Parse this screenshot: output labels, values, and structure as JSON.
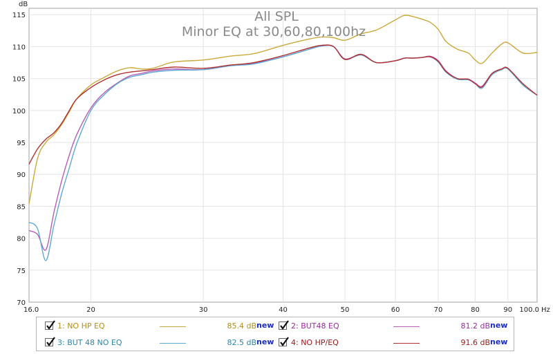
{
  "chart_data": {
    "type": "line",
    "title": "All SPL",
    "subtitle": "Minor EQ at 30,60,80,100hz",
    "xlabel": "Hz",
    "ylabel": "dB",
    "xscale": "log",
    "xlim": [
      16,
      100
    ],
    "ylim": [
      70,
      116
    ],
    "grid": true,
    "x_tick_labels": [
      "16.0",
      "20",
      "30",
      "40",
      "50",
      "60",
      "70",
      "80",
      "90",
      "100.0"
    ],
    "y_tick_labels": [
      "70",
      "75",
      "80",
      "85",
      "90",
      "95",
      "100",
      "105",
      "110",
      "115"
    ],
    "series": [
      {
        "name": "1: NO HP EQ",
        "color": "#c9a93a",
        "x": [
          16,
          16.5,
          17,
          17.5,
          18,
          18.5,
          19,
          20,
          21,
          22,
          23,
          24,
          25,
          27,
          30,
          33,
          36,
          40,
          44,
          46,
          48,
          50,
          53,
          56,
          60,
          62,
          64,
          66,
          68,
          70,
          72,
          75,
          78,
          80,
          82,
          85,
          88,
          90,
          95,
          100
        ],
        "y": [
          85.4,
          92.5,
          95.0,
          96.2,
          97.8,
          99.8,
          101.8,
          104.0,
          105.2,
          106.2,
          106.7,
          106.5,
          106.6,
          107.6,
          107.9,
          108.5,
          108.9,
          110.2,
          111.2,
          111.5,
          111.4,
          111.0,
          112.0,
          112.6,
          114.2,
          114.9,
          114.7,
          114.3,
          113.8,
          112.7,
          110.8,
          109.6,
          109.0,
          107.9,
          107.4,
          109.0,
          110.4,
          110.6,
          109.0,
          109.1
        ]
      },
      {
        "name": "2: BUT48 EQ",
        "color": "#b65db6",
        "x": [
          16,
          16.5,
          17,
          17.5,
          18,
          18.5,
          19,
          20,
          21,
          22,
          23,
          24,
          25,
          27,
          30,
          33,
          36,
          40,
          44,
          46,
          48,
          50,
          53,
          56,
          60,
          62,
          64,
          66,
          68,
          70,
          72,
          75,
          78,
          80,
          82,
          85,
          88,
          90,
          95,
          100
        ],
        "y": [
          81.2,
          80.6,
          78.2,
          84.0,
          89.0,
          93.0,
          96.2,
          100.4,
          102.8,
          104.3,
          105.4,
          105.8,
          106.2,
          106.5,
          106.4,
          107.0,
          107.4,
          108.4,
          109.6,
          110.2,
          110.0,
          108.1,
          108.7,
          107.5,
          107.8,
          108.2,
          108.2,
          108.3,
          108.5,
          107.8,
          106.2,
          105.0,
          104.9,
          104.3,
          103.8,
          105.8,
          106.5,
          106.6,
          104.0,
          102.4
        ]
      },
      {
        "name": "3: BUT 48 NO EQ",
        "color": "#5fa8d2",
        "x": [
          16,
          16.5,
          17,
          17.5,
          18,
          18.5,
          19,
          20,
          21,
          22,
          23,
          24,
          25,
          27,
          30,
          33,
          36,
          40,
          44,
          46,
          48,
          50,
          53,
          56,
          60,
          62,
          64,
          66,
          68,
          70,
          72,
          75,
          78,
          80,
          82,
          85,
          88,
          90,
          95,
          100
        ],
        "y": [
          82.5,
          81.5,
          76.5,
          82.0,
          87.0,
          91.0,
          94.8,
          100.0,
          102.5,
          104.2,
          105.2,
          105.6,
          106.0,
          106.3,
          106.4,
          107.0,
          107.3,
          108.4,
          109.6,
          110.1,
          110.0,
          108.0,
          108.7,
          107.5,
          107.8,
          108.2,
          108.2,
          108.3,
          108.4,
          107.6,
          106.0,
          104.9,
          104.8,
          104.2,
          103.5,
          105.6,
          106.4,
          106.5,
          104.0,
          102.4
        ]
      },
      {
        "name": "4: NO HP/EQ",
        "color": "#b03030",
        "x": [
          16,
          16.5,
          17,
          17.5,
          18,
          18.5,
          19,
          20,
          21,
          22,
          23,
          24,
          25,
          27,
          30,
          33,
          36,
          40,
          44,
          46,
          48,
          50,
          53,
          56,
          60,
          62,
          64,
          66,
          68,
          70,
          72,
          75,
          78,
          80,
          82,
          85,
          88,
          90,
          95,
          100
        ],
        "y": [
          91.6,
          94.0,
          95.5,
          96.5,
          98.0,
          100.0,
          101.8,
          103.6,
          104.8,
          105.6,
          106.0,
          106.2,
          106.4,
          106.8,
          106.6,
          107.1,
          107.5,
          108.6,
          109.8,
          110.2,
          110.0,
          108.0,
          108.8,
          107.5,
          107.8,
          108.2,
          108.2,
          108.3,
          108.4,
          107.7,
          106.1,
          105.0,
          104.9,
          104.2,
          103.7,
          105.8,
          106.5,
          106.6,
          104.2,
          102.4
        ]
      }
    ]
  },
  "legend": {
    "new_label": "new",
    "items": [
      {
        "label": "1: NO HP EQ",
        "value": "85.4 dB",
        "color": "#c9a93a",
        "text_color": "#b48e15",
        "checked": true
      },
      {
        "label": "2: BUT48 EQ",
        "value": "81.2 dB",
        "color": "#b65db6",
        "text_color": "#9c2a9c",
        "checked": true
      },
      {
        "label": "3: BUT 48 NO EQ",
        "value": "82.5 dB",
        "color": "#5fa8d2",
        "text_color": "#2a86a8",
        "checked": true
      },
      {
        "label": "4: NO HP/EQ",
        "value": "91.6 dB",
        "color": "#b03030",
        "text_color": "#a01818",
        "checked": true
      }
    ]
  }
}
